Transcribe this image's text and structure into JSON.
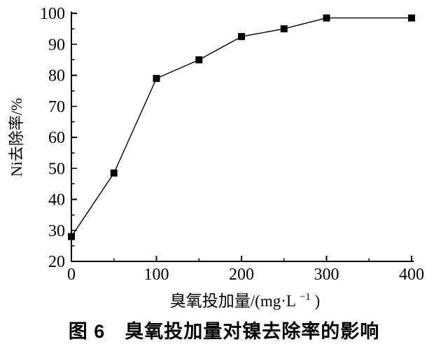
{
  "figure": {
    "caption": "图 6　臭氧投加量对镍去除率的影响"
  },
  "chart_data": {
    "type": "line",
    "title": "",
    "xlabel": "臭氧投加量/(mg·L⁻¹)",
    "xlabel_parts": {
      "main": "臭氧投加量/(mg·L",
      "sup": "−1",
      "close": ")"
    },
    "ylabel": "Ni去除率/%",
    "xlim": [
      0,
      400
    ],
    "ylim": [
      20,
      100
    ],
    "x_major_ticks": [
      0,
      100,
      200,
      300,
      400
    ],
    "x_minor_ticks": [
      50,
      150,
      250,
      350
    ],
    "y_major_ticks": [
      20,
      30,
      40,
      50,
      60,
      70,
      80,
      90,
      100
    ],
    "y_minor_ticks": [
      25,
      35,
      45,
      55,
      65,
      75,
      85,
      95
    ],
    "grid": false,
    "legend_position": "none",
    "series": [
      {
        "name": "Ni去除率",
        "marker": "filled-square",
        "color": "#000000",
        "x": [
          0,
          50,
          100,
          150,
          200,
          250,
          300,
          400
        ],
        "y": [
          28,
          48.5,
          79,
          85,
          92.5,
          95,
          98.5,
          98.5
        ]
      }
    ]
  },
  "style": {
    "background": "#ffffff",
    "axis_color": "#000000",
    "text_color": "#000000"
  }
}
